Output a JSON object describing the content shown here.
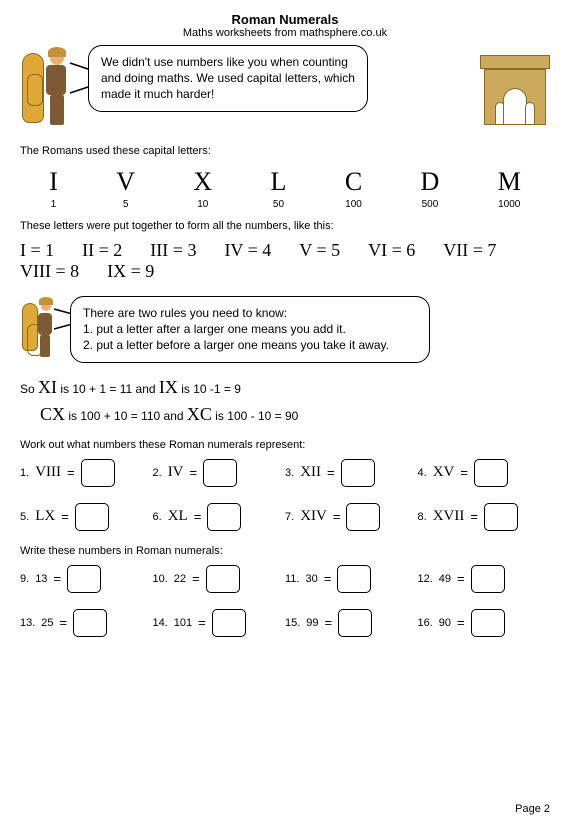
{
  "header": {
    "title": "Roman Numerals",
    "subtitle": "Maths worksheets from mathsphere.co.uk"
  },
  "speech1": "We didn't use numbers like you when counting and doing maths. We used capital letters, which made it much harder!",
  "intro1": "The Romans used these capital letters:",
  "letters": [
    {
      "glyph": "I",
      "val": "1"
    },
    {
      "glyph": "V",
      "val": "5"
    },
    {
      "glyph": "X",
      "val": "10"
    },
    {
      "glyph": "L",
      "val": "50"
    },
    {
      "glyph": "C",
      "val": "100"
    },
    {
      "glyph": "D",
      "val": "500"
    },
    {
      "glyph": "M",
      "val": "1000"
    }
  ],
  "intro2": "These letters were put together to form all the numbers, like this:",
  "examples": [
    {
      "r": "I",
      "n": "1"
    },
    {
      "r": "II",
      "n": "2"
    },
    {
      "r": "III",
      "n": "3"
    },
    {
      "r": "IV",
      "n": "4"
    },
    {
      "r": "V",
      "n": "5"
    },
    {
      "r": "VI",
      "n": "6"
    },
    {
      "r": "VII",
      "n": "7"
    },
    {
      "r": "VIII",
      "n": "8"
    },
    {
      "r": "IX",
      "n": "9"
    }
  ],
  "rules": {
    "heading": "There are two rules you need to know:",
    "r1": "1. put a letter after a larger one means you add it.",
    "r2": "2. put a letter before a larger one means you take it away."
  },
  "so": {
    "prefix": "So ",
    "xi": "XI",
    "xi_text": " is 10 + 1 = 11   and  ",
    "ix": "IX",
    "ix_text": " is 10 -1 = 9",
    "cx": "CX",
    "cx_text": " is 100 + 10 = 110  and ",
    "xc": "XC",
    "xc_text": " is 100 - 10 = 90"
  },
  "section1": "Work out what numbers these Roman numerals represent:",
  "q1": [
    {
      "n": "1.",
      "r": "VIII"
    },
    {
      "n": "2.",
      "r": "IV"
    },
    {
      "n": "3.",
      "r": "XII"
    },
    {
      "n": "4.",
      "r": "XV"
    },
    {
      "n": "5.",
      "r": "LX"
    },
    {
      "n": "6.",
      "r": "XL"
    },
    {
      "n": "7.",
      "r": "XIV"
    },
    {
      "n": "8.",
      "r": "XVII"
    }
  ],
  "section2": "Write these numbers in Roman numerals:",
  "q2": [
    {
      "n": "9.",
      "r": "13"
    },
    {
      "n": "10.",
      "r": "22"
    },
    {
      "n": "11.",
      "r": "30"
    },
    {
      "n": "12.",
      "r": "49"
    },
    {
      "n": "13.",
      "r": "25"
    },
    {
      "n": "14.",
      "r": "101"
    },
    {
      "n": "15.",
      "r": "99"
    },
    {
      "n": "16.",
      "r": "90"
    }
  ],
  "page": "Page 2",
  "colors": {
    "shield": "#e0a838",
    "shield_border": "#8a6a20",
    "arch": "#cda95e"
  }
}
